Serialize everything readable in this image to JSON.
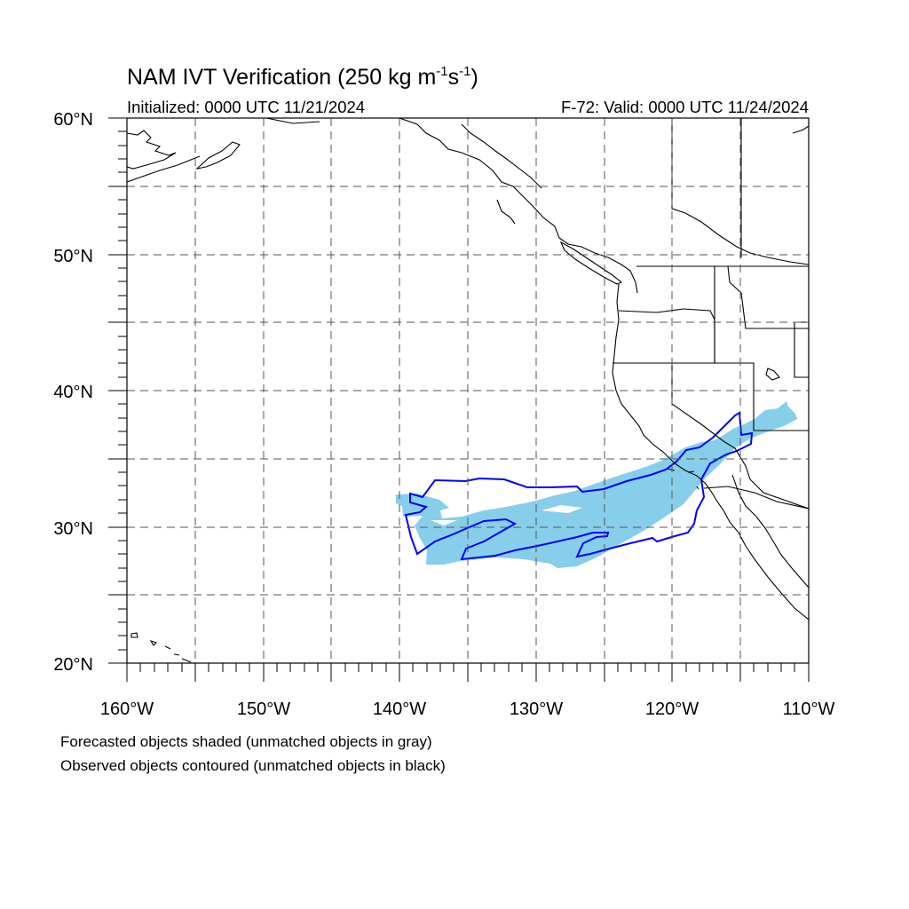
{
  "title": {
    "main": "NAM IVT Verification (250 kg m",
    "exp1": "-1",
    "mid": "s",
    "exp2": "-1",
    "end": ")"
  },
  "init_text": "Initialized: 0000 UTC 11/21/2024",
  "valid_text": "F-72: Valid: 0000 UTC 11/24/2024",
  "lat_labels": [
    "60°N",
    "50°N",
    "40°N",
    "30°N",
    "20°N"
  ],
  "lon_labels": [
    "160°W",
    "150°W",
    "140°W",
    "130°W",
    "120°W",
    "110°W"
  ],
  "notes": [
    "Forecasted objects shaded (unmatched objects in gray)",
    "Observed objects contoured (unmatched objects in black)"
  ],
  "colors": {
    "forecast_fill": "#87ceeb",
    "observed_contour": "#0000ff",
    "coastline": "#000000",
    "grid": "#555555"
  }
}
